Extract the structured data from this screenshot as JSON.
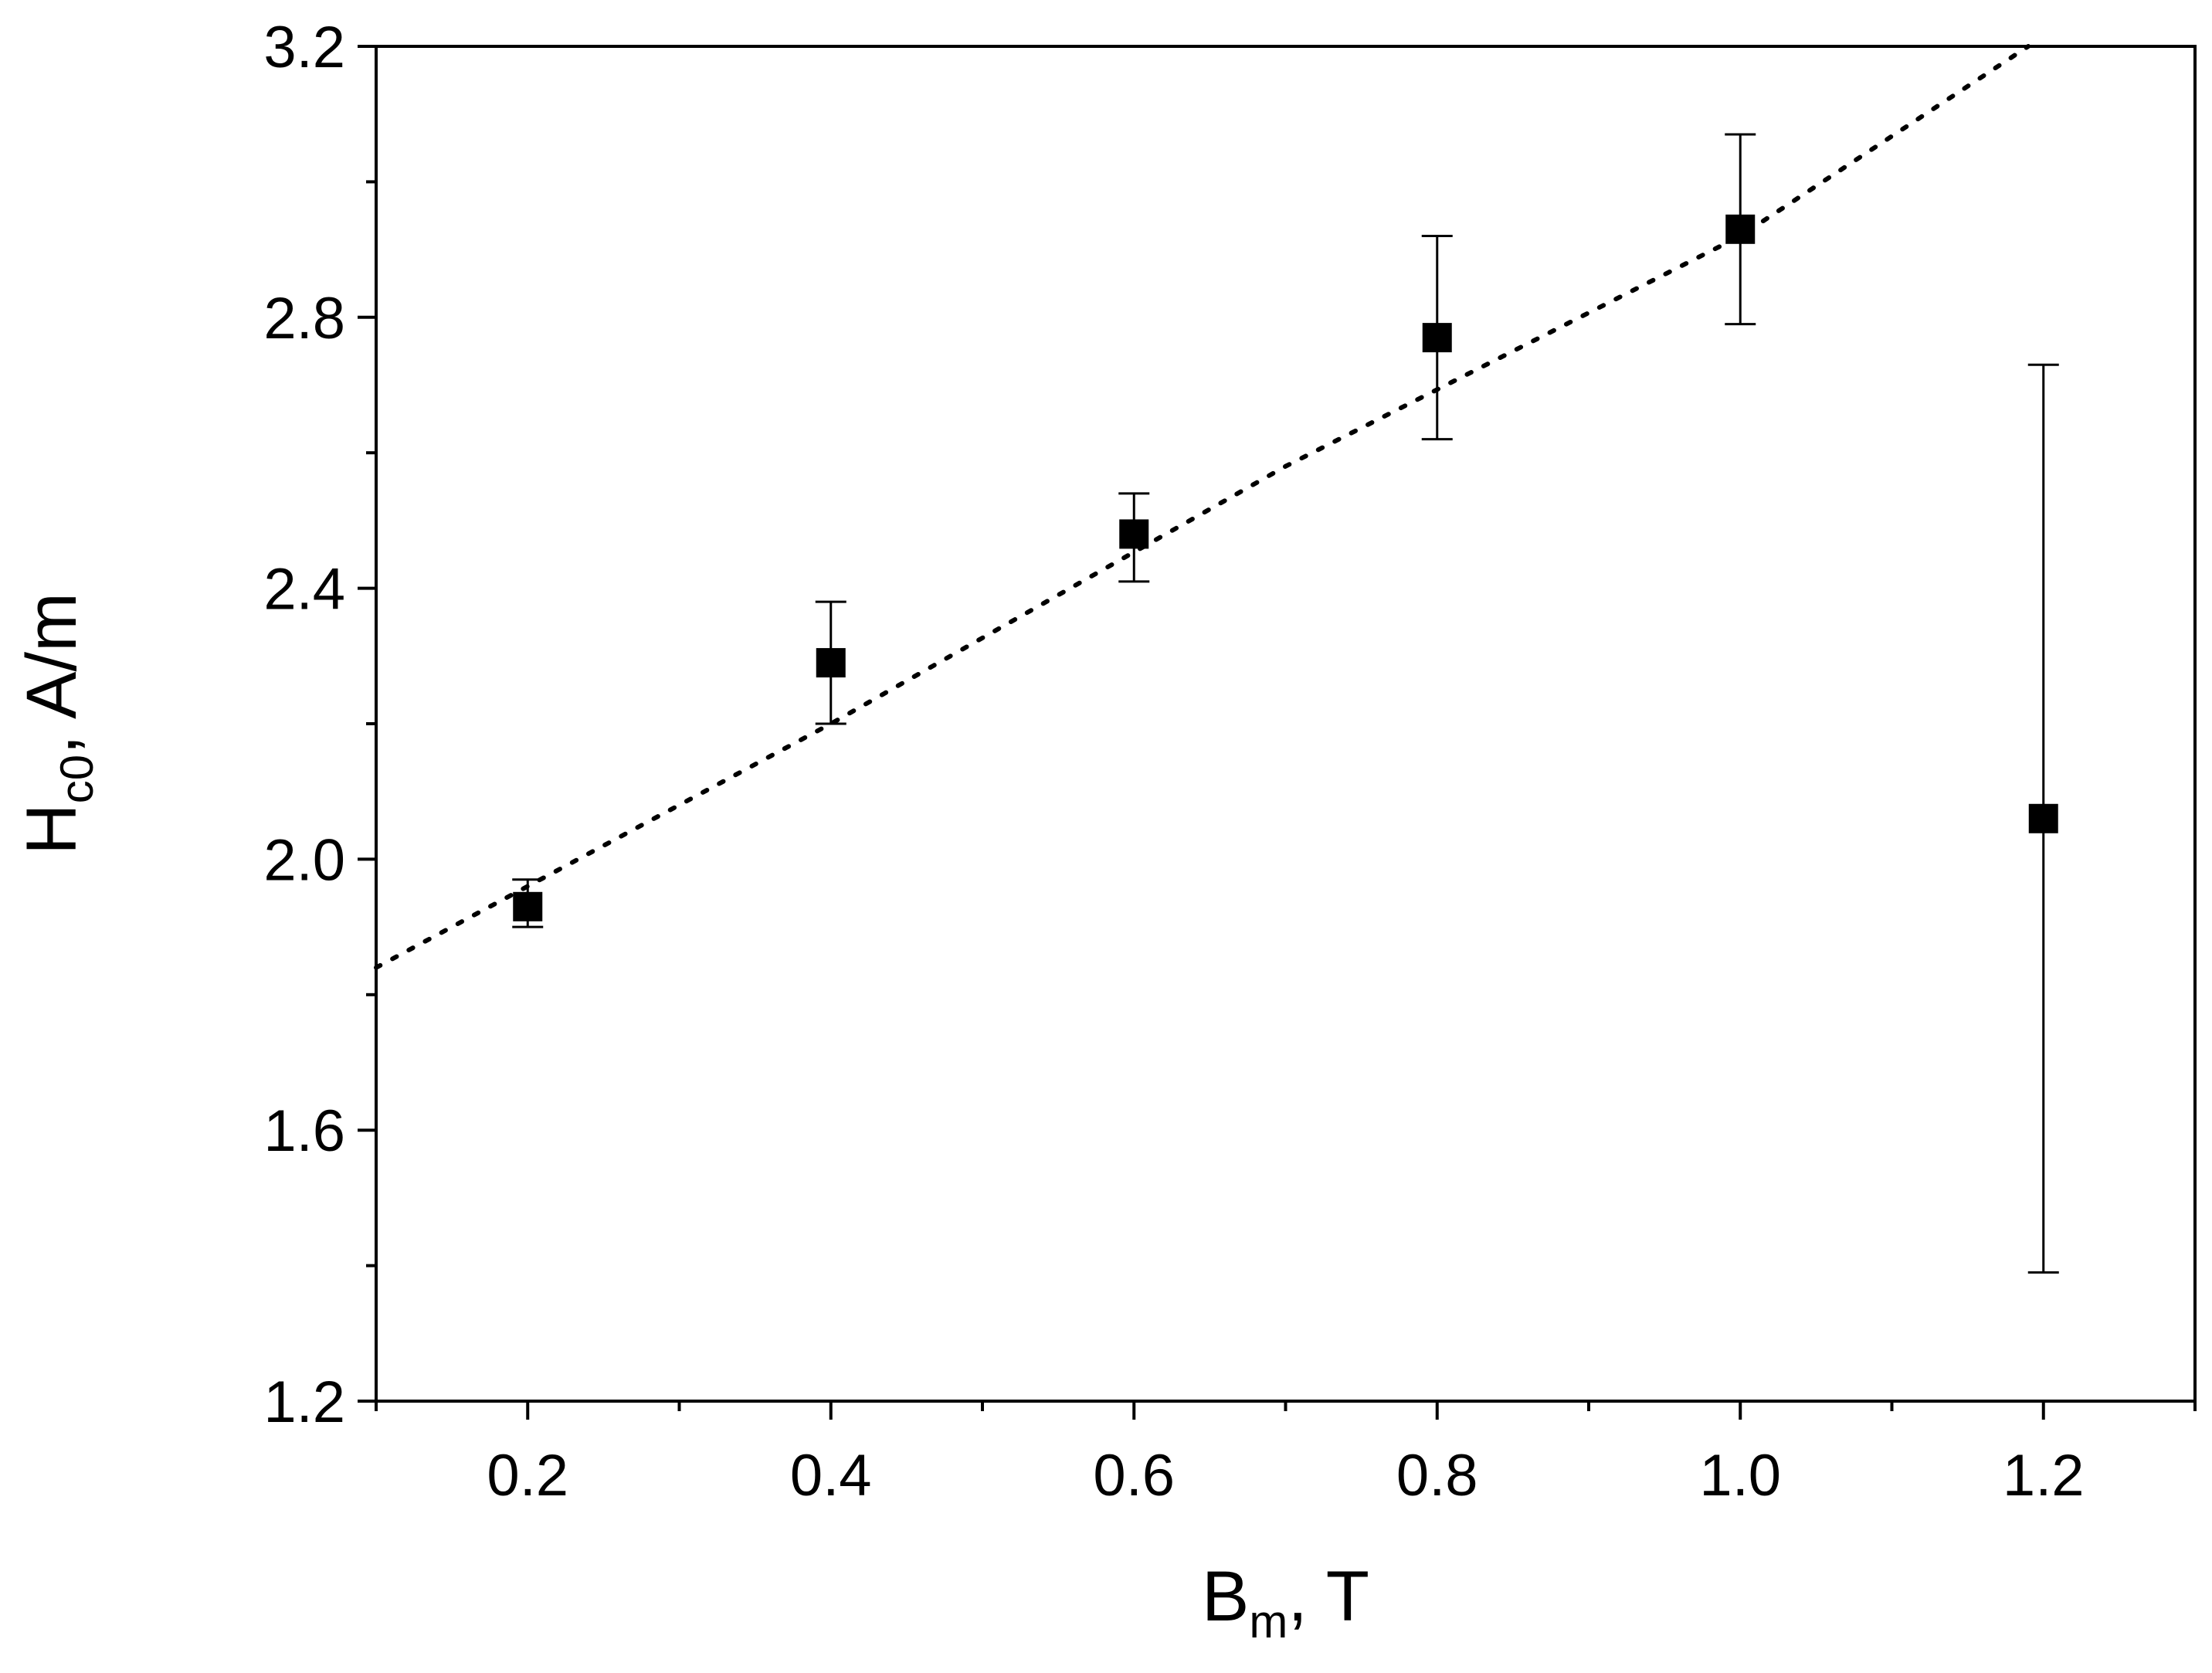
{
  "chart_data": {
    "type": "scatter",
    "xlabel": {
      "main": "B",
      "sub": "m",
      "suffix": ", T"
    },
    "ylabel": {
      "main": "H",
      "sub": "c0",
      "suffix": ", A/m"
    },
    "xlim": [
      0.1,
      1.3
    ],
    "ylim": [
      1.2,
      3.2
    ],
    "x_ticks": [
      0.2,
      0.4,
      0.6,
      0.8,
      1.0,
      1.2
    ],
    "x_tick_labels": [
      "0.2",
      "0.4",
      "0.6",
      "0.8",
      "1.0",
      "1.2"
    ],
    "x_minor_ticks": [
      0.1,
      0.3,
      0.5,
      0.7,
      0.9,
      1.1,
      1.3
    ],
    "y_ticks": [
      1.2,
      1.6,
      2.0,
      2.4,
      2.8,
      3.2
    ],
    "y_tick_labels": [
      "1.2",
      "1.6",
      "2.0",
      "2.4",
      "2.8",
      "3.2"
    ],
    "y_minor_ticks": [
      1.4,
      1.8,
      2.2,
      2.6,
      3.0
    ],
    "grid": false,
    "series": [
      {
        "marker": "square",
        "color": "#000000",
        "points": [
          {
            "x": 0.2,
            "y": 1.93,
            "err_low": 1.9,
            "err_high": 1.97
          },
          {
            "x": 0.4,
            "y": 2.29,
            "err_low": 2.2,
            "err_high": 2.38
          },
          {
            "x": 0.6,
            "y": 2.48,
            "err_low": 2.41,
            "err_high": 2.54
          },
          {
            "x": 0.8,
            "y": 2.77,
            "err_low": 2.62,
            "err_high": 2.92
          },
          {
            "x": 1.0,
            "y": 2.93,
            "err_low": 2.79,
            "err_high": 3.07
          },
          {
            "x": 1.2,
            "y": 2.06,
            "err_low": 1.39,
            "err_high": 2.73
          }
        ]
      }
    ],
    "fit_line": {
      "style": "dotted",
      "color": "#000000",
      "points": [
        {
          "x": 0.1,
          "y": 1.84
        },
        {
          "x": 0.4,
          "y": 2.2
        },
        {
          "x": 0.7,
          "y": 2.58
        },
        {
          "x": 1.0,
          "y": 2.92
        },
        {
          "x": 1.19,
          "y": 3.2
        }
      ]
    }
  }
}
